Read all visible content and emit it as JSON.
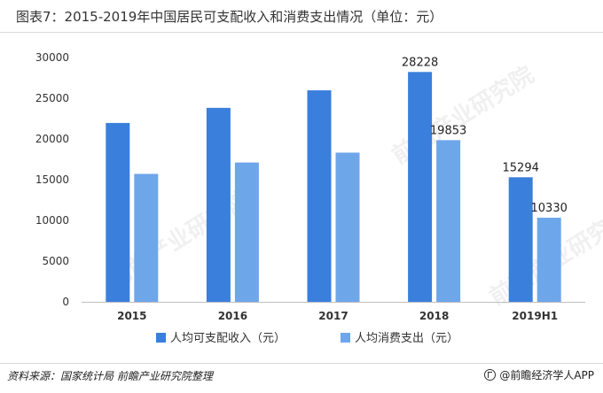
{
  "title": "图表7：2015-2019年中国居民可支配收入和消费支出情况（单位：元）",
  "footer": {
    "source": "资料来源：国家统计局 前瞻产业研究院整理",
    "brand": "@前瞻经济学人APP"
  },
  "watermark": "前瞻产业研究院",
  "colors": {
    "income": "#3a7fdc",
    "spending": "#6ea6ea",
    "axis": "#bfbfbf",
    "text": "#333333"
  },
  "chart_data": {
    "type": "bar",
    "categories": [
      "2015",
      "2016",
      "2017",
      "2018",
      "2019H1"
    ],
    "series": [
      {
        "name": "人均可支配收入（元）",
        "values": [
          21966,
          23821,
          25974,
          28228,
          15294
        ],
        "labels": [
          "",
          "",
          "",
          "28228",
          "15294"
        ]
      },
      {
        "name": "人均消费支出（元）",
        "values": [
          15712,
          17111,
          18322,
          19853,
          10330
        ],
        "labels": [
          "",
          "",
          "",
          "19853",
          "10330"
        ]
      }
    ],
    "ylim": [
      0,
      30000
    ],
    "yticks": [
      "0",
      "5000",
      "10000",
      "15000",
      "20000",
      "25000",
      "30000"
    ],
    "grid": false,
    "legend": "bottom-center"
  }
}
